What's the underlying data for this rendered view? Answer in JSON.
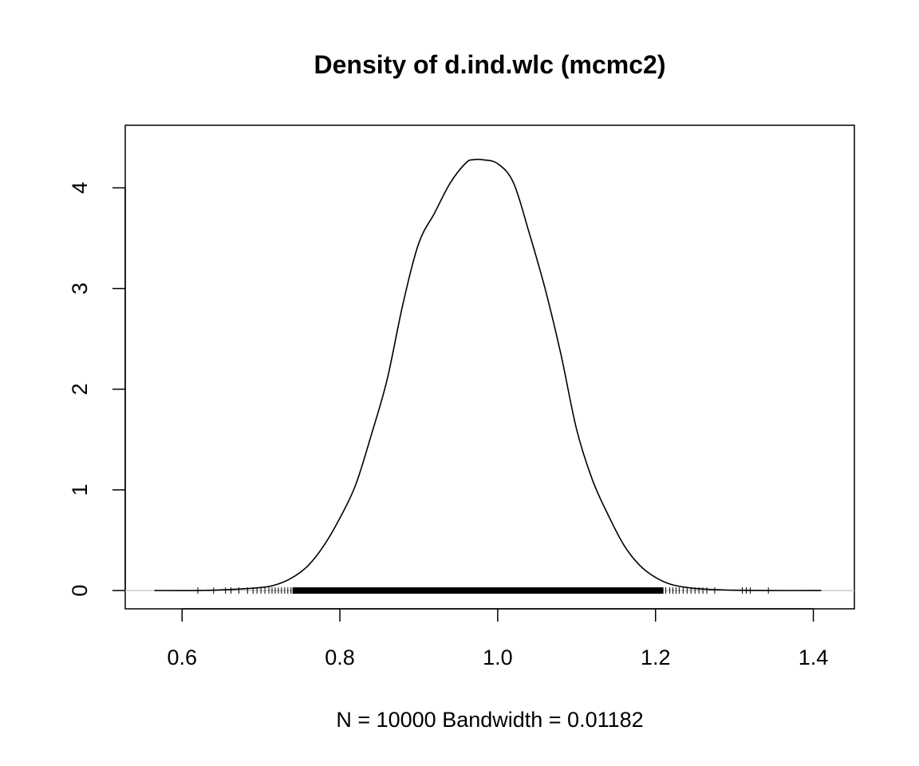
{
  "chart_data": {
    "type": "line",
    "title": "Density of d.ind.wlc (mcmc2)",
    "xlabel": "N = 10000   Bandwidth = 0.01182",
    "ylabel": "",
    "xlim": [
      0.528,
      1.452
    ],
    "ylim": [
      -0.1815,
      4.6215
    ],
    "x_ticks": [
      0.6,
      0.8,
      1.0,
      1.2,
      1.4
    ],
    "x_tick_labels": [
      "0.6",
      "0.8",
      "1.0",
      "1.2",
      "1.4"
    ],
    "y_ticks": [
      0,
      1,
      2,
      3,
      4
    ],
    "y_tick_labels": [
      "0",
      "1",
      "2",
      "3",
      "4"
    ],
    "grid": false,
    "zero_line": true,
    "series": [
      {
        "x": [
          0.565,
          0.62,
          0.66,
          0.7,
          0.72,
          0.74,
          0.76,
          0.78,
          0.8,
          0.82,
          0.84,
          0.86,
          0.88,
          0.9,
          0.92,
          0.94,
          0.96,
          0.97,
          0.98,
          1.0,
          1.02,
          1.04,
          1.06,
          1.08,
          1.1,
          1.12,
          1.14,
          1.16,
          1.18,
          1.2,
          1.22,
          1.24,
          1.26,
          1.28,
          1.3,
          1.34,
          1.41
        ],
        "y": [
          0.0,
          0.0,
          0.01,
          0.03,
          0.06,
          0.13,
          0.25,
          0.45,
          0.72,
          1.05,
          1.55,
          2.1,
          2.85,
          3.45,
          3.75,
          4.05,
          4.25,
          4.28,
          4.28,
          4.24,
          4.05,
          3.55,
          3.0,
          2.35,
          1.6,
          1.1,
          0.75,
          0.45,
          0.25,
          0.13,
          0.06,
          0.03,
          0.015,
          0.008,
          0.003,
          0.0,
          0.0
        ]
      }
    ],
    "rug": {
      "dense_range": [
        0.74,
        1.21
      ],
      "outliers": [
        0.62,
        0.64,
        0.655,
        0.662,
        0.672,
        0.683,
        0.69,
        0.695,
        0.7,
        0.705,
        0.71,
        0.714,
        0.718,
        0.722,
        0.726,
        0.73,
        0.734,
        0.738,
        1.213,
        1.218,
        1.222,
        1.226,
        1.23,
        1.235,
        1.24,
        1.245,
        1.25,
        1.255,
        1.26,
        1.265,
        1.275,
        1.31,
        1.315,
        1.32,
        1.343
      ]
    }
  }
}
